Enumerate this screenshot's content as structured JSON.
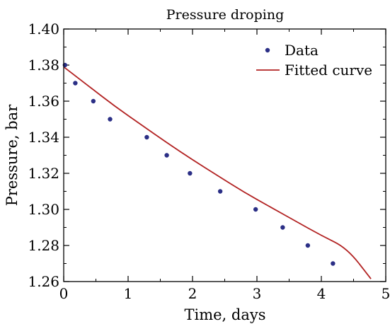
{
  "chart_data": {
    "type": "scatter",
    "title": "Pressure droping",
    "xlabel": "Time, days",
    "ylabel": "Pressure, bar",
    "xlim": [
      0,
      5
    ],
    "ylim": [
      1.26,
      1.4
    ],
    "xticks": [
      0,
      1,
      2,
      3,
      4,
      5
    ],
    "xtick_labels": [
      "0",
      "1",
      "2",
      "3",
      "4",
      "5"
    ],
    "yticks": [
      1.26,
      1.28,
      1.3,
      1.32,
      1.34,
      1.36,
      1.38,
      1.4
    ],
    "ytick_labels": [
      "1.26",
      "1.28",
      "1.30",
      "1.32",
      "1.34",
      "1.36",
      "1.38",
      "1.40"
    ],
    "grid": false,
    "legend_position": "top-right",
    "series": [
      {
        "name": "Data",
        "kind": "markers",
        "color": "#2b2f86",
        "x": [
          0.02,
          0.18,
          0.46,
          0.72,
          1.29,
          1.6,
          1.96,
          2.43,
          2.98,
          3.4,
          3.79,
          4.18
        ],
        "y": [
          1.38,
          1.37,
          1.36,
          1.35,
          1.34,
          1.33,
          1.32,
          1.31,
          1.3,
          1.29,
          1.28,
          1.27
        ]
      },
      {
        "name": "Fitted curve",
        "kind": "line",
        "color": "#b22222",
        "x": [
          0.0,
          0.4,
          0.8,
          1.2,
          1.6,
          2.0,
          2.4,
          2.8,
          3.2,
          3.6,
          4.0,
          4.4,
          4.77
        ],
        "y": [
          1.379,
          1.368,
          1.357,
          1.347,
          1.337,
          1.3275,
          1.3185,
          1.3095,
          1.3015,
          1.2935,
          1.2855,
          1.2785,
          1.2615
        ]
      }
    ]
  }
}
